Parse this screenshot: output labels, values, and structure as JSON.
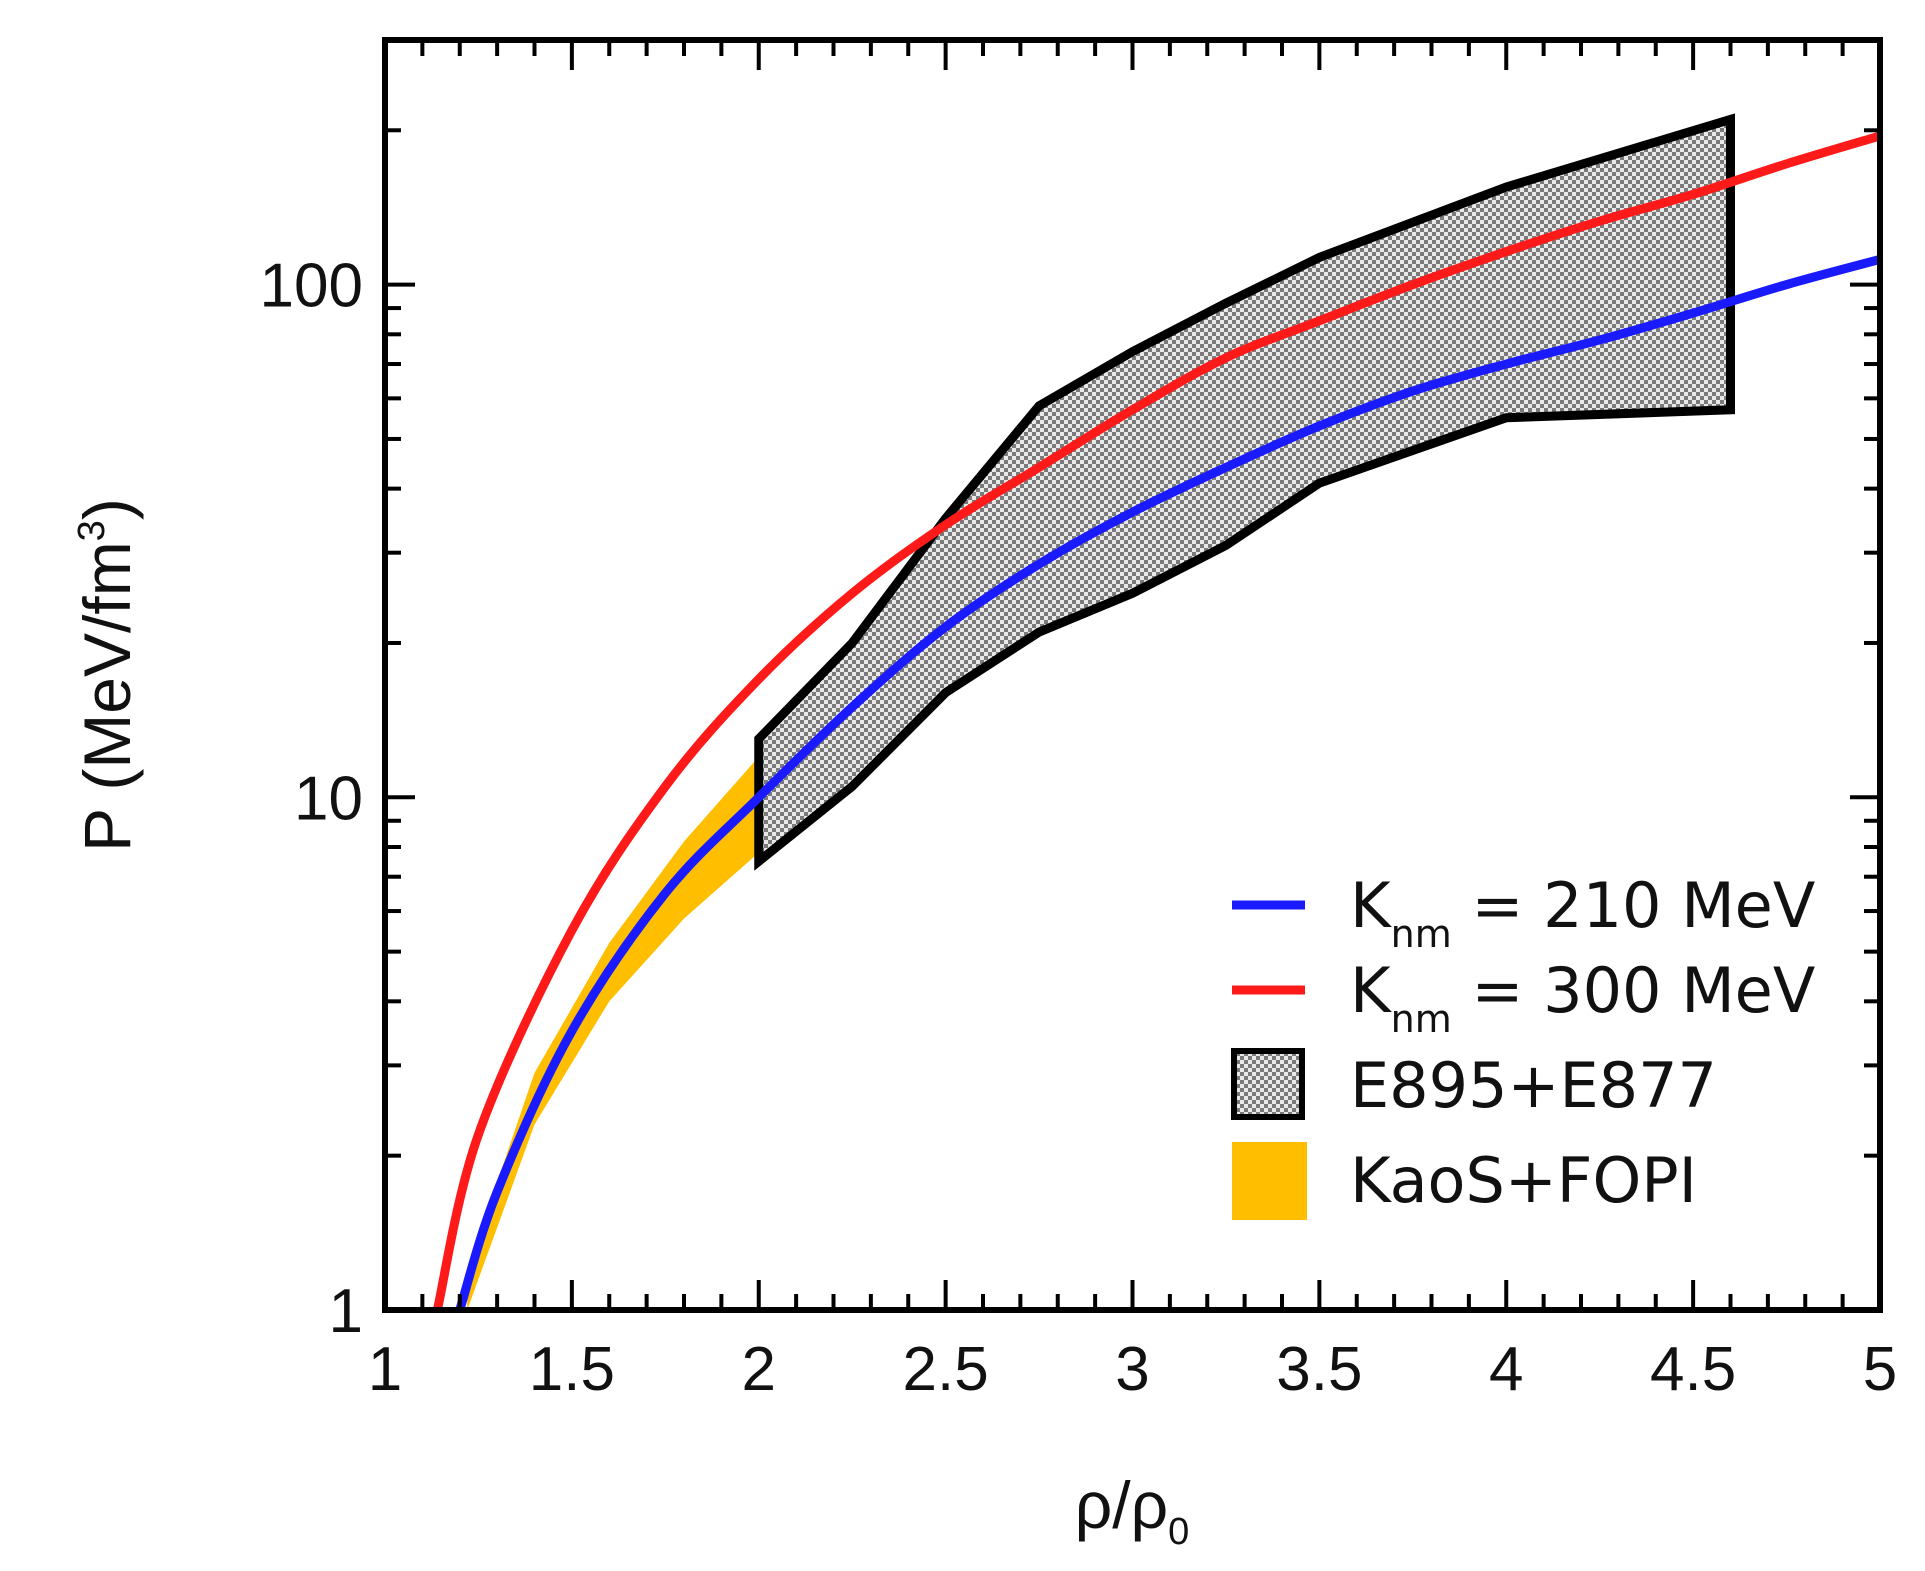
{
  "chart_data": {
    "type": "line",
    "title": "",
    "xlabel": {
      "base": "ρ/ρ",
      "sub": "0"
    },
    "ylabel": {
      "base": "P (MeV/fm",
      "sup": "3",
      "tail": ")"
    },
    "xlim": [
      1,
      5
    ],
    "ylim": [
      1,
      300
    ],
    "yscale": "log",
    "x_ticks": [
      1,
      1.5,
      2,
      2.5,
      3,
      3.5,
      4,
      4.5,
      5
    ],
    "x_tick_labels": [
      "1",
      "1.5",
      "2",
      "2.5",
      "3",
      "3.5",
      "4",
      "4.5",
      "5"
    ],
    "y_ticks": [
      1,
      10,
      100
    ],
    "y_tick_labels": [
      "1",
      "10",
      "100"
    ],
    "series": [
      {
        "name": "K_nm = 210 MeV",
        "color": "#1a1aff",
        "x": [
          1.2,
          1.3,
          1.5,
          1.75,
          2.0,
          2.25,
          2.5,
          2.75,
          3.0,
          3.25,
          3.5,
          3.75,
          4.0,
          4.25,
          4.5,
          4.75,
          5.0
        ],
        "y": [
          1.0,
          1.7,
          3.5,
          6.5,
          10.0,
          15.0,
          21.5,
          28.5,
          36.0,
          44.0,
          53.0,
          62.0,
          70.0,
          78.0,
          88.0,
          100.0,
          112.0
        ]
      },
      {
        "name": "K_nm = 300 MeV",
        "color": "#ff1a1a",
        "x": [
          1.14,
          1.25,
          1.5,
          1.75,
          2.0,
          2.25,
          2.5,
          2.75,
          3.0,
          3.25,
          3.5,
          3.75,
          4.0,
          4.25,
          4.5,
          4.75,
          5.0
        ],
        "y": [
          1.0,
          2.2,
          5.5,
          10.5,
          17.0,
          25.0,
          34.0,
          44.0,
          57.0,
          72.0,
          85.0,
          100.0,
          116.0,
          133.0,
          150.0,
          172.0,
          195.0
        ]
      }
    ],
    "bands": [
      {
        "name": "E895+E877",
        "fill": "hatched-gray",
        "outline": "#000000",
        "upper": {
          "x": [
            2.0,
            2.25,
            2.5,
            2.75,
            3.0,
            3.25,
            3.5,
            4.0,
            4.6
          ],
          "y": [
            13.0,
            20.0,
            35.0,
            58.0,
            74.0,
            92.0,
            113.0,
            155.0,
            210.0
          ]
        },
        "lower": {
          "x": [
            2.0,
            2.25,
            2.5,
            2.75,
            3.0,
            3.25,
            3.5,
            4.0,
            4.6
          ],
          "y": [
            7.5,
            10.5,
            16.0,
            21.0,
            25.0,
            31.0,
            41.0,
            55.0,
            57.0
          ]
        }
      },
      {
        "name": "KaoS+FOPI",
        "fill": "#ffbf00",
        "upper": {
          "x": [
            1.22,
            1.4,
            1.6,
            1.8,
            2.0
          ],
          "y": [
            1.2,
            2.9,
            5.2,
            8.2,
            12.0
          ]
        },
        "lower": {
          "x": [
            1.22,
            1.4,
            1.6,
            1.8,
            2.0
          ],
          "y": [
            1.0,
            2.3,
            4.0,
            5.8,
            7.8
          ]
        }
      }
    ],
    "legend": {
      "position": "bottom-right",
      "items": [
        {
          "kind": "line",
          "color": "#1a1aff",
          "base": "K",
          "sub": "nm",
          "rest": " = 210 MeV"
        },
        {
          "kind": "line",
          "color": "#ff1a1a",
          "base": "K",
          "sub": "nm",
          "rest": " = 300 MeV"
        },
        {
          "kind": "hatch",
          "base": "E895+E877",
          "sub": "",
          "rest": ""
        },
        {
          "kind": "fill",
          "color": "#ffbf00",
          "base": "KaoS+FOPI",
          "sub": "",
          "rest": ""
        }
      ]
    },
    "grid": false
  }
}
